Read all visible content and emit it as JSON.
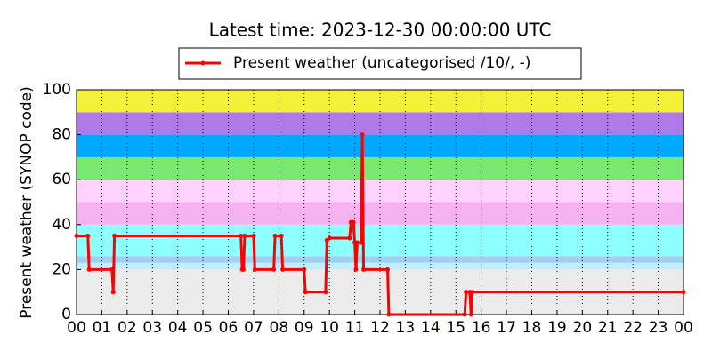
{
  "chart_data": {
    "type": "line",
    "title": "Latest time: 2023-12-30 00:00:00 UTC",
    "y_label": "Present weather (SYNOP code)",
    "legend": "top",
    "grid": "x",
    "bands": [
      {
        "from": 0,
        "to": 20,
        "color": "#ebebeb"
      },
      {
        "from": 20,
        "to": 23,
        "color": "#c4eeff"
      },
      {
        "from": 23,
        "to": 26,
        "color": "#9fd2f0"
      },
      {
        "from": 26,
        "to": 40,
        "color": "#8cffff"
      },
      {
        "from": 40,
        "to": 50,
        "color": "#f5b2f0"
      },
      {
        "from": 50,
        "to": 60,
        "color": "#ffd2ff"
      },
      {
        "from": 60,
        "to": 70,
        "color": "#78e86e"
      },
      {
        "from": 70,
        "to": 80,
        "color": "#00a8ff"
      },
      {
        "from": 80,
        "to": 90,
        "color": "#ad7ae8"
      },
      {
        "from": 90,
        "to": 100,
        "color": "#f5f03a"
      }
    ],
    "x": [
      0,
      0.45,
      0.5,
      1.4,
      1.45,
      1.5,
      6.5,
      6.55,
      6.6,
      6.65,
      7.0,
      7.05,
      7.8,
      7.85,
      8.1,
      8.15,
      9.0,
      9.05,
      9.85,
      9.9,
      10.0,
      10.8,
      10.85,
      10.95,
      11.0,
      11.05,
      11.1,
      11.25,
      11.3,
      11.35,
      12.3,
      12.35,
      15.35,
      15.4,
      15.55,
      15.6,
      15.65,
      24
    ],
    "series": [
      {
        "name": "Present weather (uncategorised /10/, -)",
        "color": "#ff0000",
        "values": [
          35,
          35,
          20,
          20,
          10,
          35,
          35,
          20,
          20,
          35,
          35,
          20,
          20,
          35,
          35,
          20,
          20,
          10,
          10,
          33,
          34,
          34,
          41,
          41,
          32,
          20,
          32,
          32,
          80,
          20,
          20,
          0,
          0,
          10,
          10,
          0,
          10,
          10
        ]
      }
    ],
    "xlim": [
      0,
      24
    ],
    "xticks": [
      {
        "value": 0,
        "label": "00"
      },
      {
        "value": 1,
        "label": "01"
      },
      {
        "value": 2,
        "label": "02"
      },
      {
        "value": 3,
        "label": "03"
      },
      {
        "value": 4,
        "label": "04"
      },
      {
        "value": 5,
        "label": "05"
      },
      {
        "value": 6,
        "label": "06"
      },
      {
        "value": 7,
        "label": "07"
      },
      {
        "value": 8,
        "label": "08"
      },
      {
        "value": 9,
        "label": "09"
      },
      {
        "value": 10,
        "label": "10"
      },
      {
        "value": 11,
        "label": "11"
      },
      {
        "value": 12,
        "label": "12"
      },
      {
        "value": 13,
        "label": "13"
      },
      {
        "value": 14,
        "label": "14"
      },
      {
        "value": 15,
        "label": "15"
      },
      {
        "value": 16,
        "label": "16"
      },
      {
        "value": 17,
        "label": "17"
      },
      {
        "value": 18,
        "label": "18"
      },
      {
        "value": 19,
        "label": "19"
      },
      {
        "value": 20,
        "label": "20"
      },
      {
        "value": 21,
        "label": "21"
      },
      {
        "value": 22,
        "label": "22"
      },
      {
        "value": 23,
        "label": "23"
      },
      {
        "value": 24,
        "label": "00"
      }
    ],
    "ylim": [
      0,
      100
    ],
    "yticks": [
      0,
      20,
      40,
      60,
      80,
      100
    ]
  }
}
